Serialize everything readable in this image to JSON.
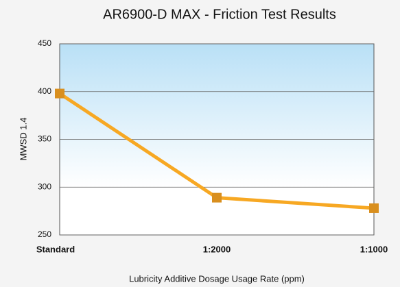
{
  "chart_data": {
    "type": "line",
    "title": "AR6900-D MAX - Friction Test Results",
    "y_label": "MWSD 1.4",
    "x_label": "Lubricity Additive Dosage Usage Rate (ppm)",
    "categories": [
      "Standard",
      "1:2000",
      "1:1000"
    ],
    "series": [
      {
        "name": "MWSD 1.4",
        "color": "#f7a823",
        "marker_color": "#d98f1e",
        "values": [
          398,
          289,
          278
        ]
      }
    ],
    "ylim": [
      250,
      450
    ],
    "yticks": [
      250,
      300,
      350,
      400,
      450
    ],
    "grid": true
  }
}
